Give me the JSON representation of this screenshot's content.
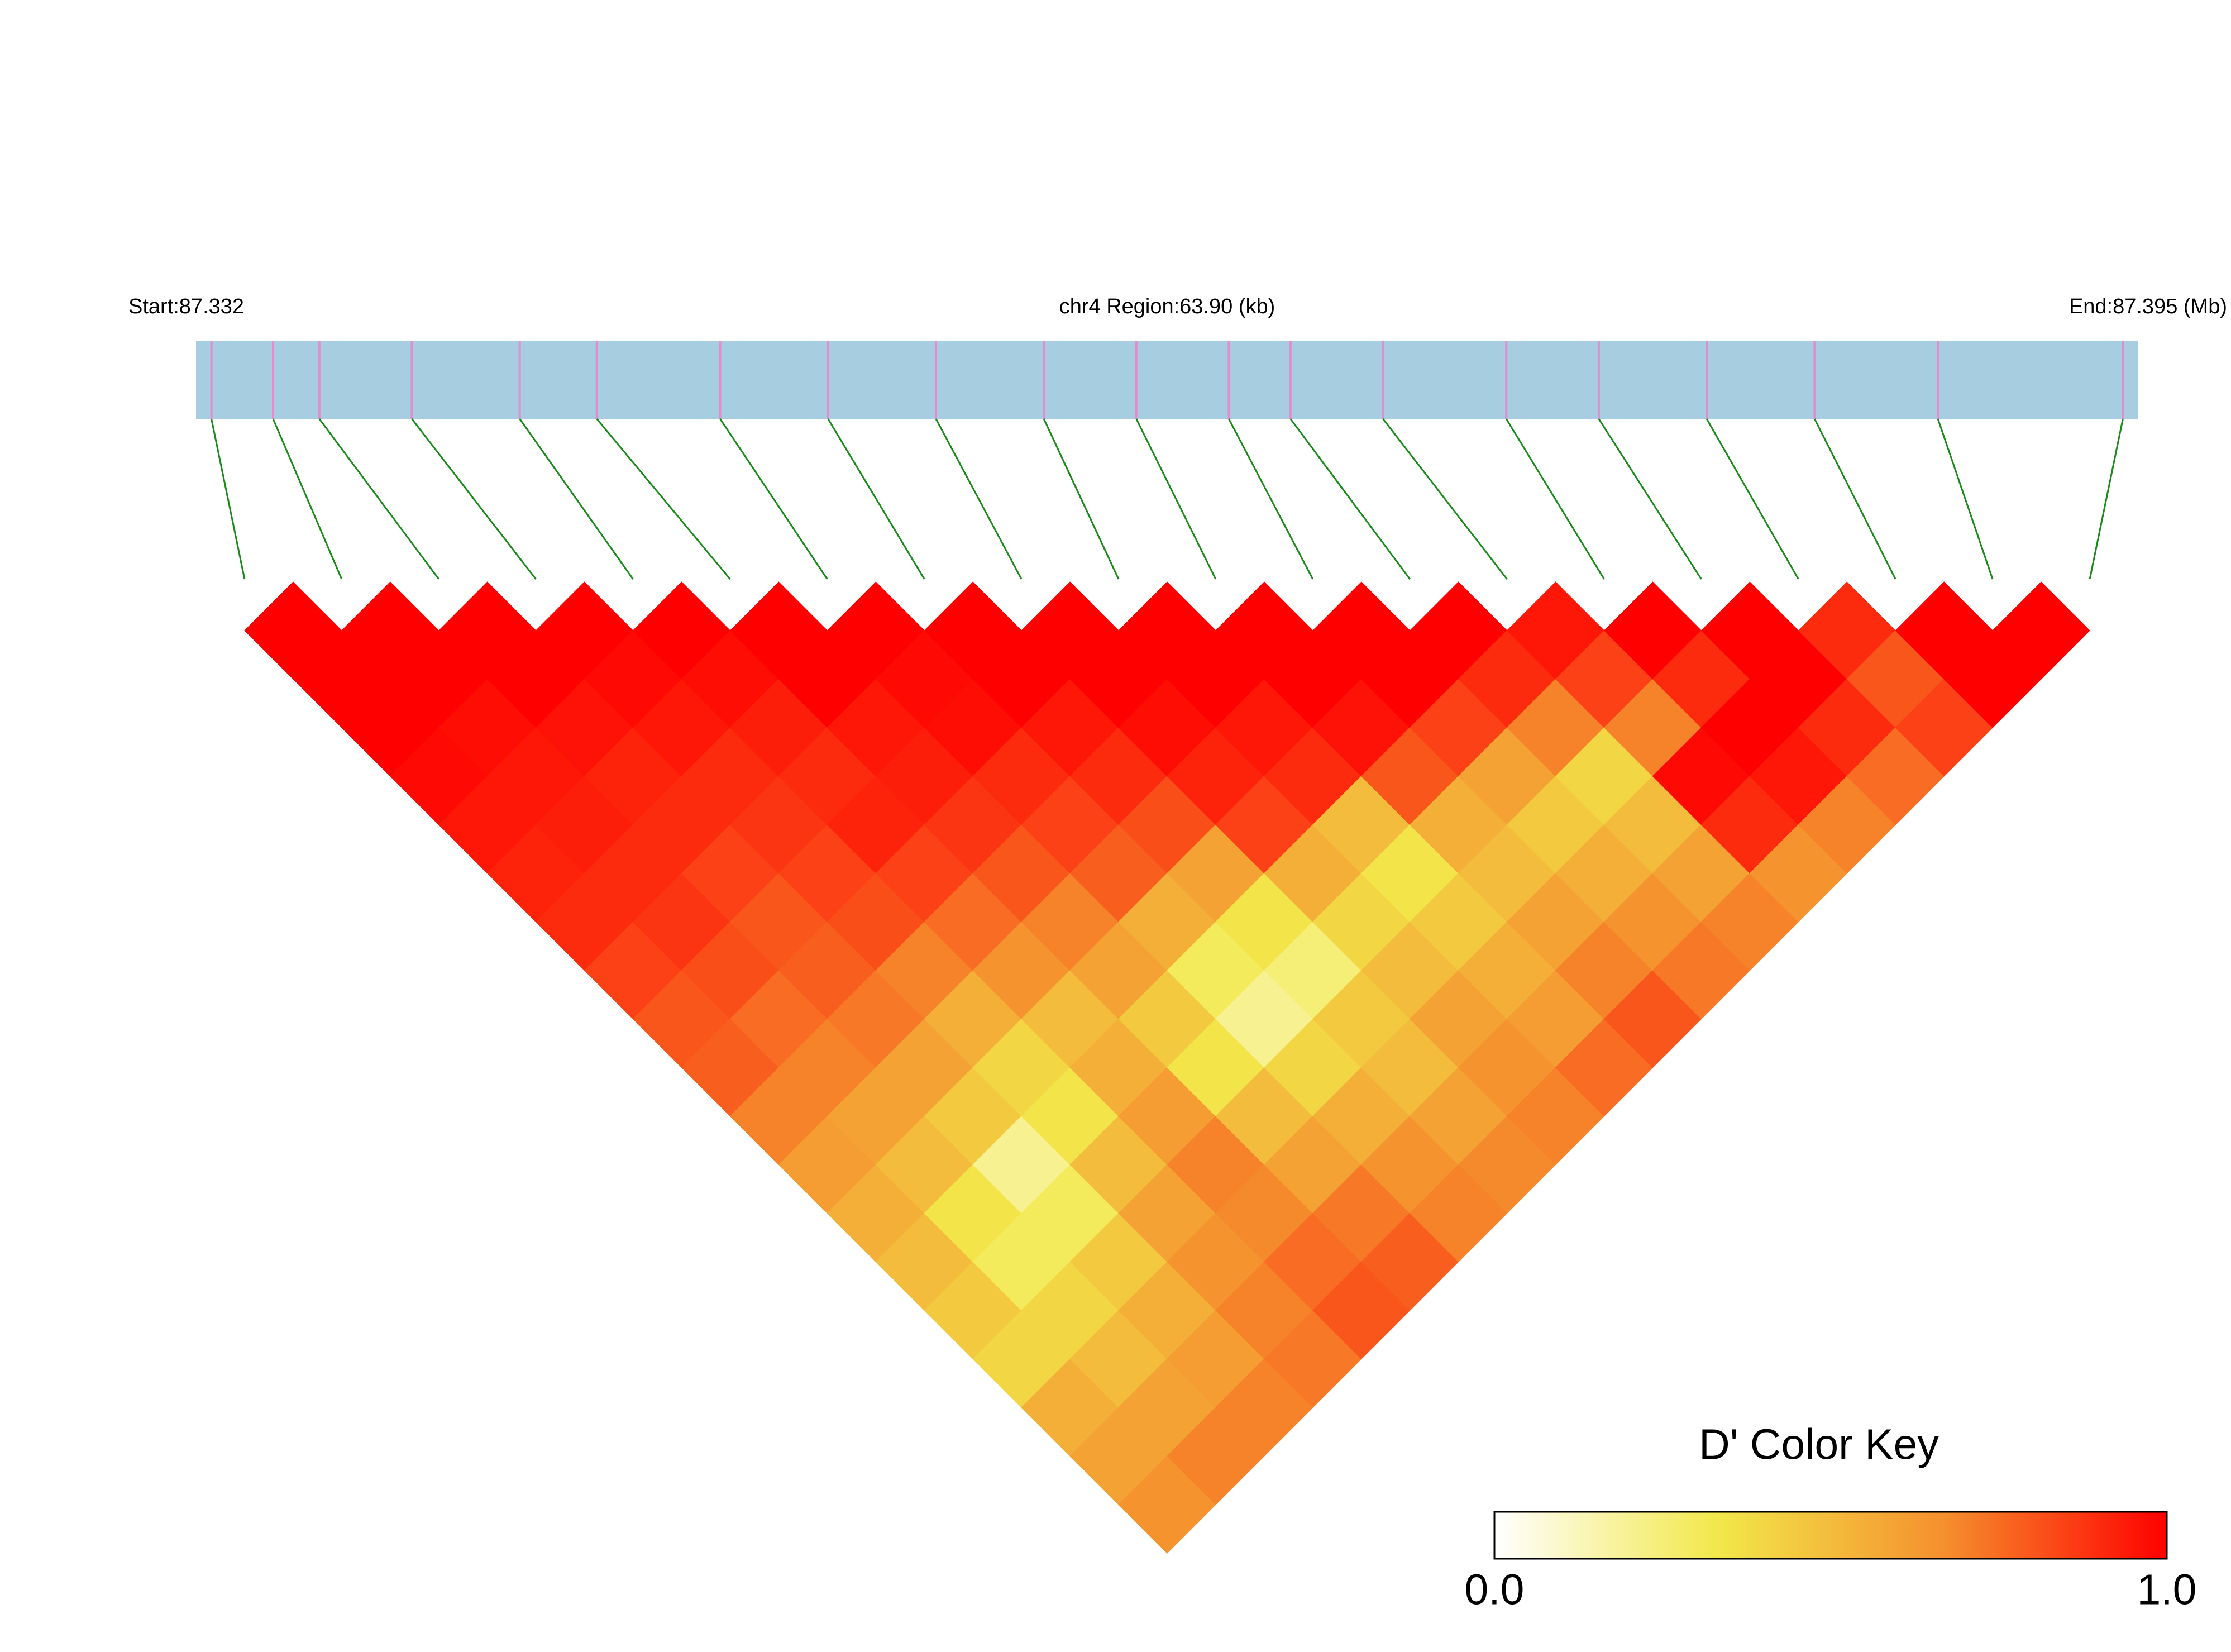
{
  "chart_data": {
    "type": "ld-heatmap",
    "start_label": "Start:87.332",
    "region_label": "chr4 Region:63.90 (kb)",
    "end_label": "End:87.395 (Mb)",
    "xlim": [
      87.332,
      87.395
    ],
    "track_color": "#a6cde0",
    "marker_color": "#e58ccf",
    "link_color": "#1a8a1a",
    "snp_positions": [
      87.3325,
      87.3345,
      87.336,
      87.339,
      87.3425,
      87.345,
      87.349,
      87.3525,
      87.356,
      87.3595,
      87.3625,
      87.3655,
      87.3675,
      87.3705,
      87.3745,
      87.3775,
      87.381,
      87.3845,
      87.3885,
      87.3945
    ],
    "dprime": [
      [
        1,
        1,
        1,
        0.98,
        0.95,
        0.92,
        0.9,
        0.85,
        0.8,
        0.78,
        0.7,
        0.62,
        0.55,
        0.5,
        0.45,
        0.4,
        0.55,
        0.6,
        0.65
      ],
      [
        1,
        1,
        0.97,
        0.95,
        0.93,
        0.9,
        0.88,
        0.82,
        0.75,
        0.7,
        0.6,
        0.5,
        0.35,
        0.3,
        0.4,
        0.5,
        0.6,
        0.7
      ],
      [
        1,
        1,
        0.96,
        0.92,
        0.9,
        0.85,
        0.8,
        0.78,
        0.72,
        0.6,
        0.45,
        0.2,
        0.3,
        0.45,
        0.55,
        0.62,
        0.7
      ],
      [
        1,
        0.98,
        0.95,
        0.9,
        0.88,
        0.85,
        0.82,
        0.7,
        0.55,
        0.4,
        0.35,
        0.5,
        0.6,
        0.65,
        0.7,
        0.72
      ],
      [
        1,
        0.97,
        0.93,
        0.9,
        0.92,
        0.85,
        0.75,
        0.65,
        0.5,
        0.55,
        0.62,
        0.7,
        0.68,
        0.75,
        0.8
      ],
      [
        1,
        1,
        0.95,
        0.93,
        0.88,
        0.8,
        0.7,
        0.6,
        0.45,
        0.35,
        0.5,
        0.6,
        0.72,
        0.78
      ],
      [
        1,
        0.98,
        0.97,
        0.9,
        0.85,
        0.78,
        0.55,
        0.3,
        0.2,
        0.4,
        0.55,
        0.65,
        0.7
      ],
      [
        1,
        1,
        0.95,
        0.9,
        0.82,
        0.6,
        0.35,
        0.25,
        0.45,
        0.5,
        0.6,
        0.68
      ],
      [
        1,
        1,
        0.97,
        0.92,
        0.85,
        0.55,
        0.4,
        0.5,
        0.6,
        0.65,
        0.7
      ],
      [
        1,
        1,
        0.95,
        0.9,
        0.5,
        0.35,
        0.45,
        0.55,
        0.62,
        0.75
      ],
      [
        1,
        1,
        0.96,
        0.8,
        0.55,
        0.5,
        0.6,
        0.7,
        0.8
      ],
      [
        1,
        1,
        0.85,
        0.6,
        0.45,
        0.55,
        0.65,
        0.72
      ],
      [
        1,
        0.9,
        0.7,
        0.4,
        0.5,
        0.6,
        0.7
      ],
      [
        0.95,
        0.85,
        0.7,
        0.98,
        0.9,
        0.65
      ],
      [
        1,
        0.9,
        1,
        0.95,
        0.7
      ],
      [
        1,
        1,
        0.9,
        0.75
      ],
      [
        0.9,
        0.8,
        0.85
      ],
      [
        1,
        1
      ],
      [
        1
      ]
    ],
    "color_key": {
      "title": "D' Color Key",
      "lim": [
        0,
        1
      ],
      "colors": [
        "#ffffff",
        "#f2e84a",
        "#f5902e",
        "#ff0000"
      ],
      "ticks": [
        {
          "value": 0,
          "label": "0.0"
        },
        {
          "value": 1,
          "label": "1.0"
        }
      ]
    }
  }
}
